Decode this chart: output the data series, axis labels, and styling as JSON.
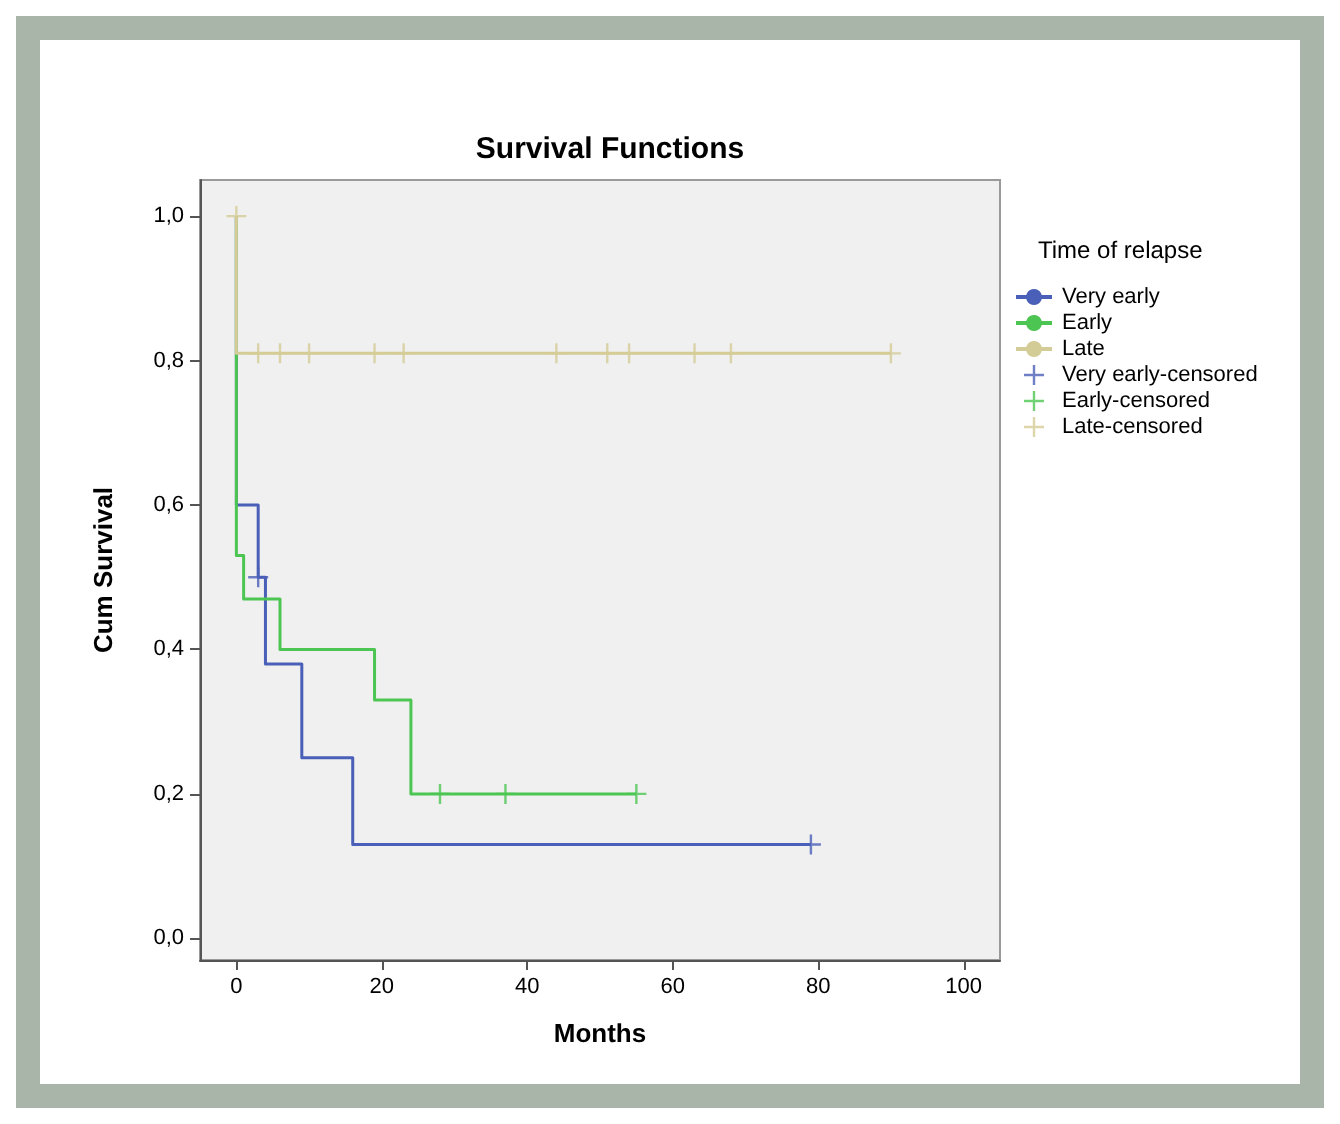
{
  "chart_data": {
    "type": "step",
    "title": "Survival Functions",
    "xlabel": "Months",
    "ylabel": "Cum Survival",
    "legend_title": "Time of relapse",
    "legend": "right",
    "grid": false,
    "xlim": [
      -5,
      105
    ],
    "xticks": [
      0,
      20,
      40,
      60,
      80,
      100
    ],
    "ylim": [
      -0.03,
      1.05
    ],
    "yticks": [
      {
        "value": 0,
        "label": "0,0"
      },
      {
        "value": 0.2,
        "label": "0,2"
      },
      {
        "value": 0.4,
        "label": "0,4"
      },
      {
        "value": 0.6,
        "label": "0,6"
      },
      {
        "value": 0.8,
        "label": "0,8"
      },
      {
        "value": 1,
        "label": "1,0"
      }
    ],
    "series": [
      {
        "name": "Very early",
        "marker": "none",
        "color": "#4a5fb8",
        "x": [
          0,
          0,
          3,
          4,
          9,
          16,
          79
        ],
        "values": [
          1,
          0.6,
          0.5,
          0.38,
          0.25,
          0.13,
          0.13
        ]
      },
      {
        "name": "Early",
        "marker": "none",
        "color": "#4cc553",
        "x": [
          0,
          0,
          1,
          6,
          19,
          24,
          55
        ],
        "values": [
          1,
          0.53,
          0.47,
          0.4,
          0.33,
          0.2,
          0.2
        ]
      },
      {
        "name": "Late",
        "marker": "none",
        "color": "#d4cc96",
        "x": [
          0,
          0,
          90
        ],
        "values": [
          1,
          0.81,
          0.81
        ]
      },
      {
        "name": "Very early-censored",
        "type": "scatter",
        "marker": "cross",
        "color": "#4a5fb8",
        "x": [
          3,
          79
        ],
        "values": [
          0.5,
          0.13
        ]
      },
      {
        "name": "Early-censored",
        "type": "scatter",
        "marker": "cross",
        "color": "#4cc553",
        "x": [
          28,
          37,
          55
        ],
        "values": [
          0.2,
          0.2,
          0.2
        ]
      },
      {
        "name": "Late-censored",
        "type": "scatter",
        "marker": "cross",
        "color": "#d4cc96",
        "x": [
          0,
          3,
          6,
          10,
          19,
          23,
          44,
          51,
          54,
          63,
          68,
          90
        ],
        "values": [
          1,
          0.81,
          0.81,
          0.81,
          0.81,
          0.81,
          0.81,
          0.81,
          0.81,
          0.81,
          0.81,
          0.81
        ]
      }
    ]
  }
}
